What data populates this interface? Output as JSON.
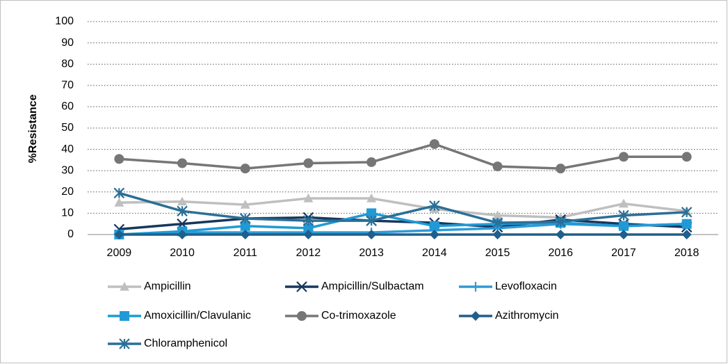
{
  "chart_data": {
    "type": "line",
    "y_label": "%Resistance",
    "categories": [
      "2009",
      "2010",
      "2011",
      "2012",
      "2013",
      "2014",
      "2015",
      "2016",
      "2017",
      "2018"
    ],
    "ylim": [
      0,
      100
    ],
    "yticks": [
      0,
      10,
      20,
      30,
      40,
      50,
      60,
      70,
      80,
      90,
      100
    ],
    "grid": true,
    "legend": "bottom",
    "series": [
      {
        "name": "Ampicillin",
        "color": "#bfbfbf",
        "marker": "triangle",
        "values": [
          15,
          15.5,
          14,
          17,
          17,
          12,
          9,
          8,
          14.5,
          11
        ]
      },
      {
        "name": "Ampicillin/Sulbactam",
        "color": "#17375e",
        "marker": "x",
        "values": [
          2.5,
          5,
          7.5,
          8,
          6.5,
          5.5,
          3.5,
          7,
          5,
          3.5
        ]
      },
      {
        "name": "Levofloxacin",
        "color": "#2e9bd6",
        "marker": "plus",
        "values": [
          0,
          1,
          1,
          1,
          1,
          2,
          3,
          5,
          4,
          5
        ]
      },
      {
        "name": "Amoxicillin/Clavulanic",
        "color": "#1f9ad6",
        "marker": "square",
        "values": [
          0,
          1.5,
          4,
          3,
          10,
          4,
          5,
          5.5,
          4,
          5
        ]
      },
      {
        "name": "Co-trimoxazole",
        "color": "#767676",
        "marker": "circle",
        "values": [
          35.5,
          33.5,
          31,
          33.5,
          34,
          42.5,
          32,
          31,
          36.5,
          36.5
        ]
      },
      {
        "name": "Azithromycin",
        "color": "#1f5f8b",
        "marker": "diamond",
        "values": [
          0,
          0,
          0,
          0,
          0,
          0,
          0,
          0,
          0,
          0
        ]
      },
      {
        "name": "Chloramphenicol",
        "color": "#2a6f97",
        "marker": "asterisk",
        "values": [
          19.5,
          11,
          7.5,
          6.5,
          6.5,
          13.5,
          5.5,
          6,
          9,
          10.5
        ]
      }
    ]
  }
}
